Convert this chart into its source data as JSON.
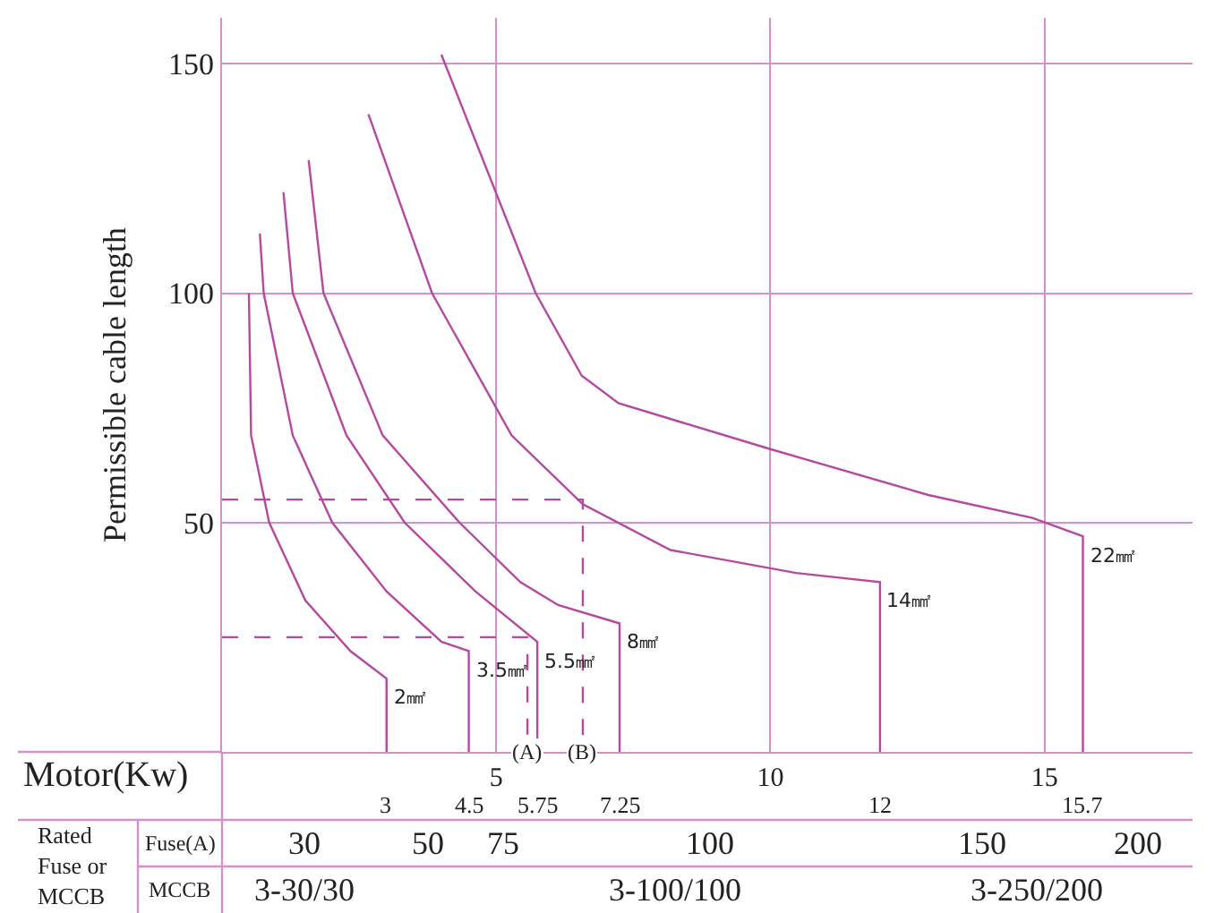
{
  "chart_data": {
    "type": "line",
    "xlabel": "Motor(Kw)",
    "ylabel": "Permissible cable length",
    "xlim": [
      0,
      17.7
    ],
    "ylim": [
      0,
      160
    ],
    "xticks": [
      5,
      10,
      15
    ],
    "yticks": [
      50,
      100,
      150
    ],
    "grid": true,
    "legend": false,
    "marker": "none",
    "line_style": "solid",
    "series": [
      {
        "name": "2㎟",
        "color": "#b5489f",
        "x": [
          0.49,
          0.53,
          0.86,
          1.52,
          2.34,
          3,
          3
        ],
        "values": [
          100,
          69,
          50,
          33,
          22,
          16,
          0
        ]
      },
      {
        "name": "3.5㎟",
        "color": "#b5489f",
        "x": [
          0.69,
          0.76,
          1.29,
          2.01,
          3,
          4.0,
          4.5,
          4.5
        ],
        "values": [
          113,
          100,
          69,
          50,
          35,
          24,
          22,
          0
        ]
      },
      {
        "name": "5.5㎟",
        "color": "#b5489f",
        "x": [
          1.12,
          1.29,
          2.27,
          3.33,
          4.62,
          5.75,
          5.75
        ],
        "values": [
          122,
          100,
          69,
          50,
          35,
          24,
          0
        ]
      },
      {
        "name": "8㎟",
        "color": "#b5489f",
        "x": [
          1.58,
          1.85,
          2.93,
          4.33,
          5.44,
          6.13,
          7.25,
          7.25
        ],
        "values": [
          129,
          100,
          69,
          50,
          37,
          32,
          28,
          0
        ]
      },
      {
        "name": "14㎟",
        "color": "#b5489f",
        "x": [
          2.67,
          3.83,
          5.28,
          6.58,
          8.18,
          10.47,
          12,
          12
        ],
        "values": [
          139,
          100,
          69,
          54,
          44,
          39,
          37,
          0
        ]
      },
      {
        "name": "22㎟",
        "color": "#b5489f",
        "x": [
          4.0,
          5.72,
          6.56,
          7.23,
          10,
          12.88,
          14.78,
          15.7,
          15.7
        ],
        "values": [
          152,
          100,
          82,
          76,
          66,
          56,
          51,
          47,
          0
        ]
      },
      {
        "color": "#b5489f",
        "line_style": "dashed",
        "x": [
          0,
          5.57,
          5.57
        ],
        "values": [
          25,
          25,
          0
        ]
      },
      {
        "color": "#b5489f",
        "line_style": "dashed",
        "x": [
          0,
          6.58,
          6.58
        ],
        "values": [
          55,
          55,
          0
        ]
      }
    ],
    "annotations": [
      {
        "text": "(A)",
        "x": 5.57,
        "y": 0
      },
      {
        "text": "(B)",
        "x": 6.58,
        "y": 0
      },
      {
        "text": "3",
        "x": 3,
        "y": 0
      },
      {
        "text": "4.5",
        "x": 4.5,
        "y": 0
      },
      {
        "text": "5.75",
        "x": 5.75,
        "y": 0
      },
      {
        "text": "7.25",
        "x": 7.25,
        "y": 0
      },
      {
        "text": "12",
        "x": 12,
        "y": 0
      },
      {
        "text": "15.7",
        "x": 15.7,
        "y": 0
      },
      "Rated\nFuse or\nMCCB",
      "Fuse(A)",
      "MCCB",
      "30",
      "50",
      "75",
      "100",
      "150",
      "200",
      "3-30/30",
      "3-100/100",
      "3-250/200"
    ]
  }
}
